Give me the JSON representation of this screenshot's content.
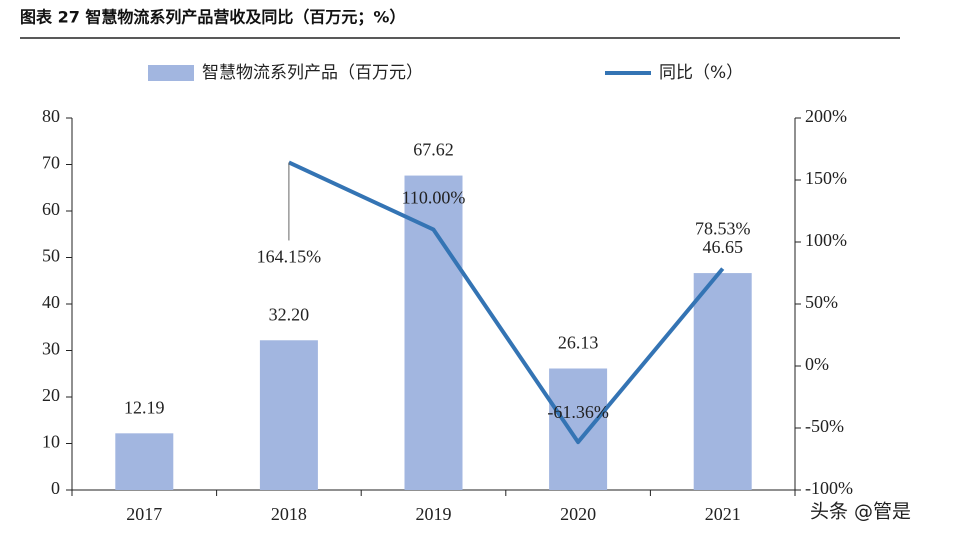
{
  "chart_data": {
    "type": "bar-line",
    "title": "图表 27 智慧物流系列产品营收及同比（百万元；%）",
    "watermark": "头条 @管是",
    "categories": [
      "2017",
      "2018",
      "2019",
      "2020",
      "2021"
    ],
    "series": [
      {
        "name": "智慧物流系列产品（百万元）",
        "type": "bar",
        "color": "#a2b6e0",
        "values": [
          12.19,
          32.2,
          67.62,
          26.13,
          46.65
        ],
        "value_labels": [
          "12.19",
          "32.20",
          "67.62",
          "26.13",
          "46.65"
        ]
      },
      {
        "name": "同比（%）",
        "type": "line",
        "axis": "y2",
        "color": "#3474b4",
        "values": [
          null,
          164.15,
          110.0,
          -61.36,
          78.53
        ],
        "value_labels": [
          null,
          "164.15%",
          "110.00%",
          "-61.36%",
          "78.53%"
        ]
      }
    ],
    "ylim": [
      0,
      80
    ],
    "yticks": [
      0,
      10,
      20,
      30,
      40,
      50,
      60,
      70,
      80
    ],
    "y2lim": [
      -100,
      200
    ],
    "y2ticks": [
      {
        "value": -100,
        "label": "-100%"
      },
      {
        "value": -50,
        "label": "-50%"
      },
      {
        "value": 0,
        "label": "0%"
      },
      {
        "value": 50,
        "label": "50%"
      },
      {
        "value": 100,
        "label": "100%"
      },
      {
        "value": 150,
        "label": "150%"
      },
      {
        "value": 200,
        "label": "200%"
      }
    ],
    "legend": "top"
  }
}
